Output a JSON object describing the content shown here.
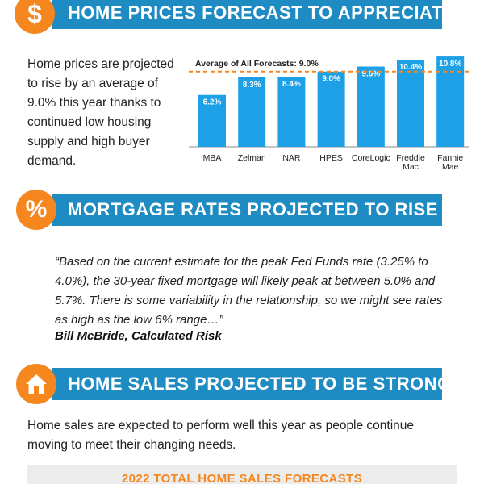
{
  "section1": {
    "icon": "dollar-sign-icon",
    "icon_glyph": "$",
    "title": "HOME PRICES FORECAST TO APPRECIATE",
    "intro": "Home prices are projected to rise by an average of 9.0% this year thanks to continued low housing supply and high buyer demand."
  },
  "section2": {
    "icon": "percent-icon",
    "icon_glyph": "%",
    "title": "MORTGAGE RATES PROJECTED TO RISE",
    "quote": "“Based on the current estimate for the peak Fed Funds rate (3.25% to 4.0%), the 30-year fixed mortgage will likely peak at between 5.0% and 5.7%. There is some variability in the relationship, so we might see rates as high as the low 6% range…”",
    "attribution": "Bill McBride, Calculated Risk"
  },
  "section3": {
    "icon": "house-icon",
    "title": "HOME SALES PROJECTED TO BE STRONG",
    "text": "Home sales are expected to perform well this year as people continue moving to meet their changing needs.",
    "forecast_title": "2022 TOTAL HOME SALES FORECASTS"
  },
  "colors": {
    "accent_orange": "#f6871f",
    "banner_blue": "#1e8bc3",
    "bar_blue": "#1ea0e6"
  },
  "chart_data": {
    "type": "bar",
    "categories": [
      "MBA",
      "Zelman",
      "NAR",
      "HPES",
      "CoreLogic",
      "Freddie Mac",
      "Fannie Mae"
    ],
    "category_lines": [
      [
        "MBA"
      ],
      [
        "Zelman"
      ],
      [
        "NAR"
      ],
      [
        "HPES"
      ],
      [
        "CoreLogic"
      ],
      [
        "Freddie",
        "Mac"
      ],
      [
        "Fannie",
        "Mae"
      ]
    ],
    "values": [
      6.2,
      8.3,
      8.4,
      9.0,
      9.6,
      10.4,
      10.8
    ],
    "value_labels": [
      "6.2%",
      "8.3%",
      "8.4%",
      "9.0%",
      "9.6%",
      "10.4%",
      "10.8%"
    ],
    "reference_line": {
      "value": 9.0,
      "label": "Average of All Forecasts: 9.0%"
    },
    "ylim": [
      0,
      11
    ],
    "grid": false,
    "title": "",
    "xlabel": "",
    "ylabel": ""
  }
}
